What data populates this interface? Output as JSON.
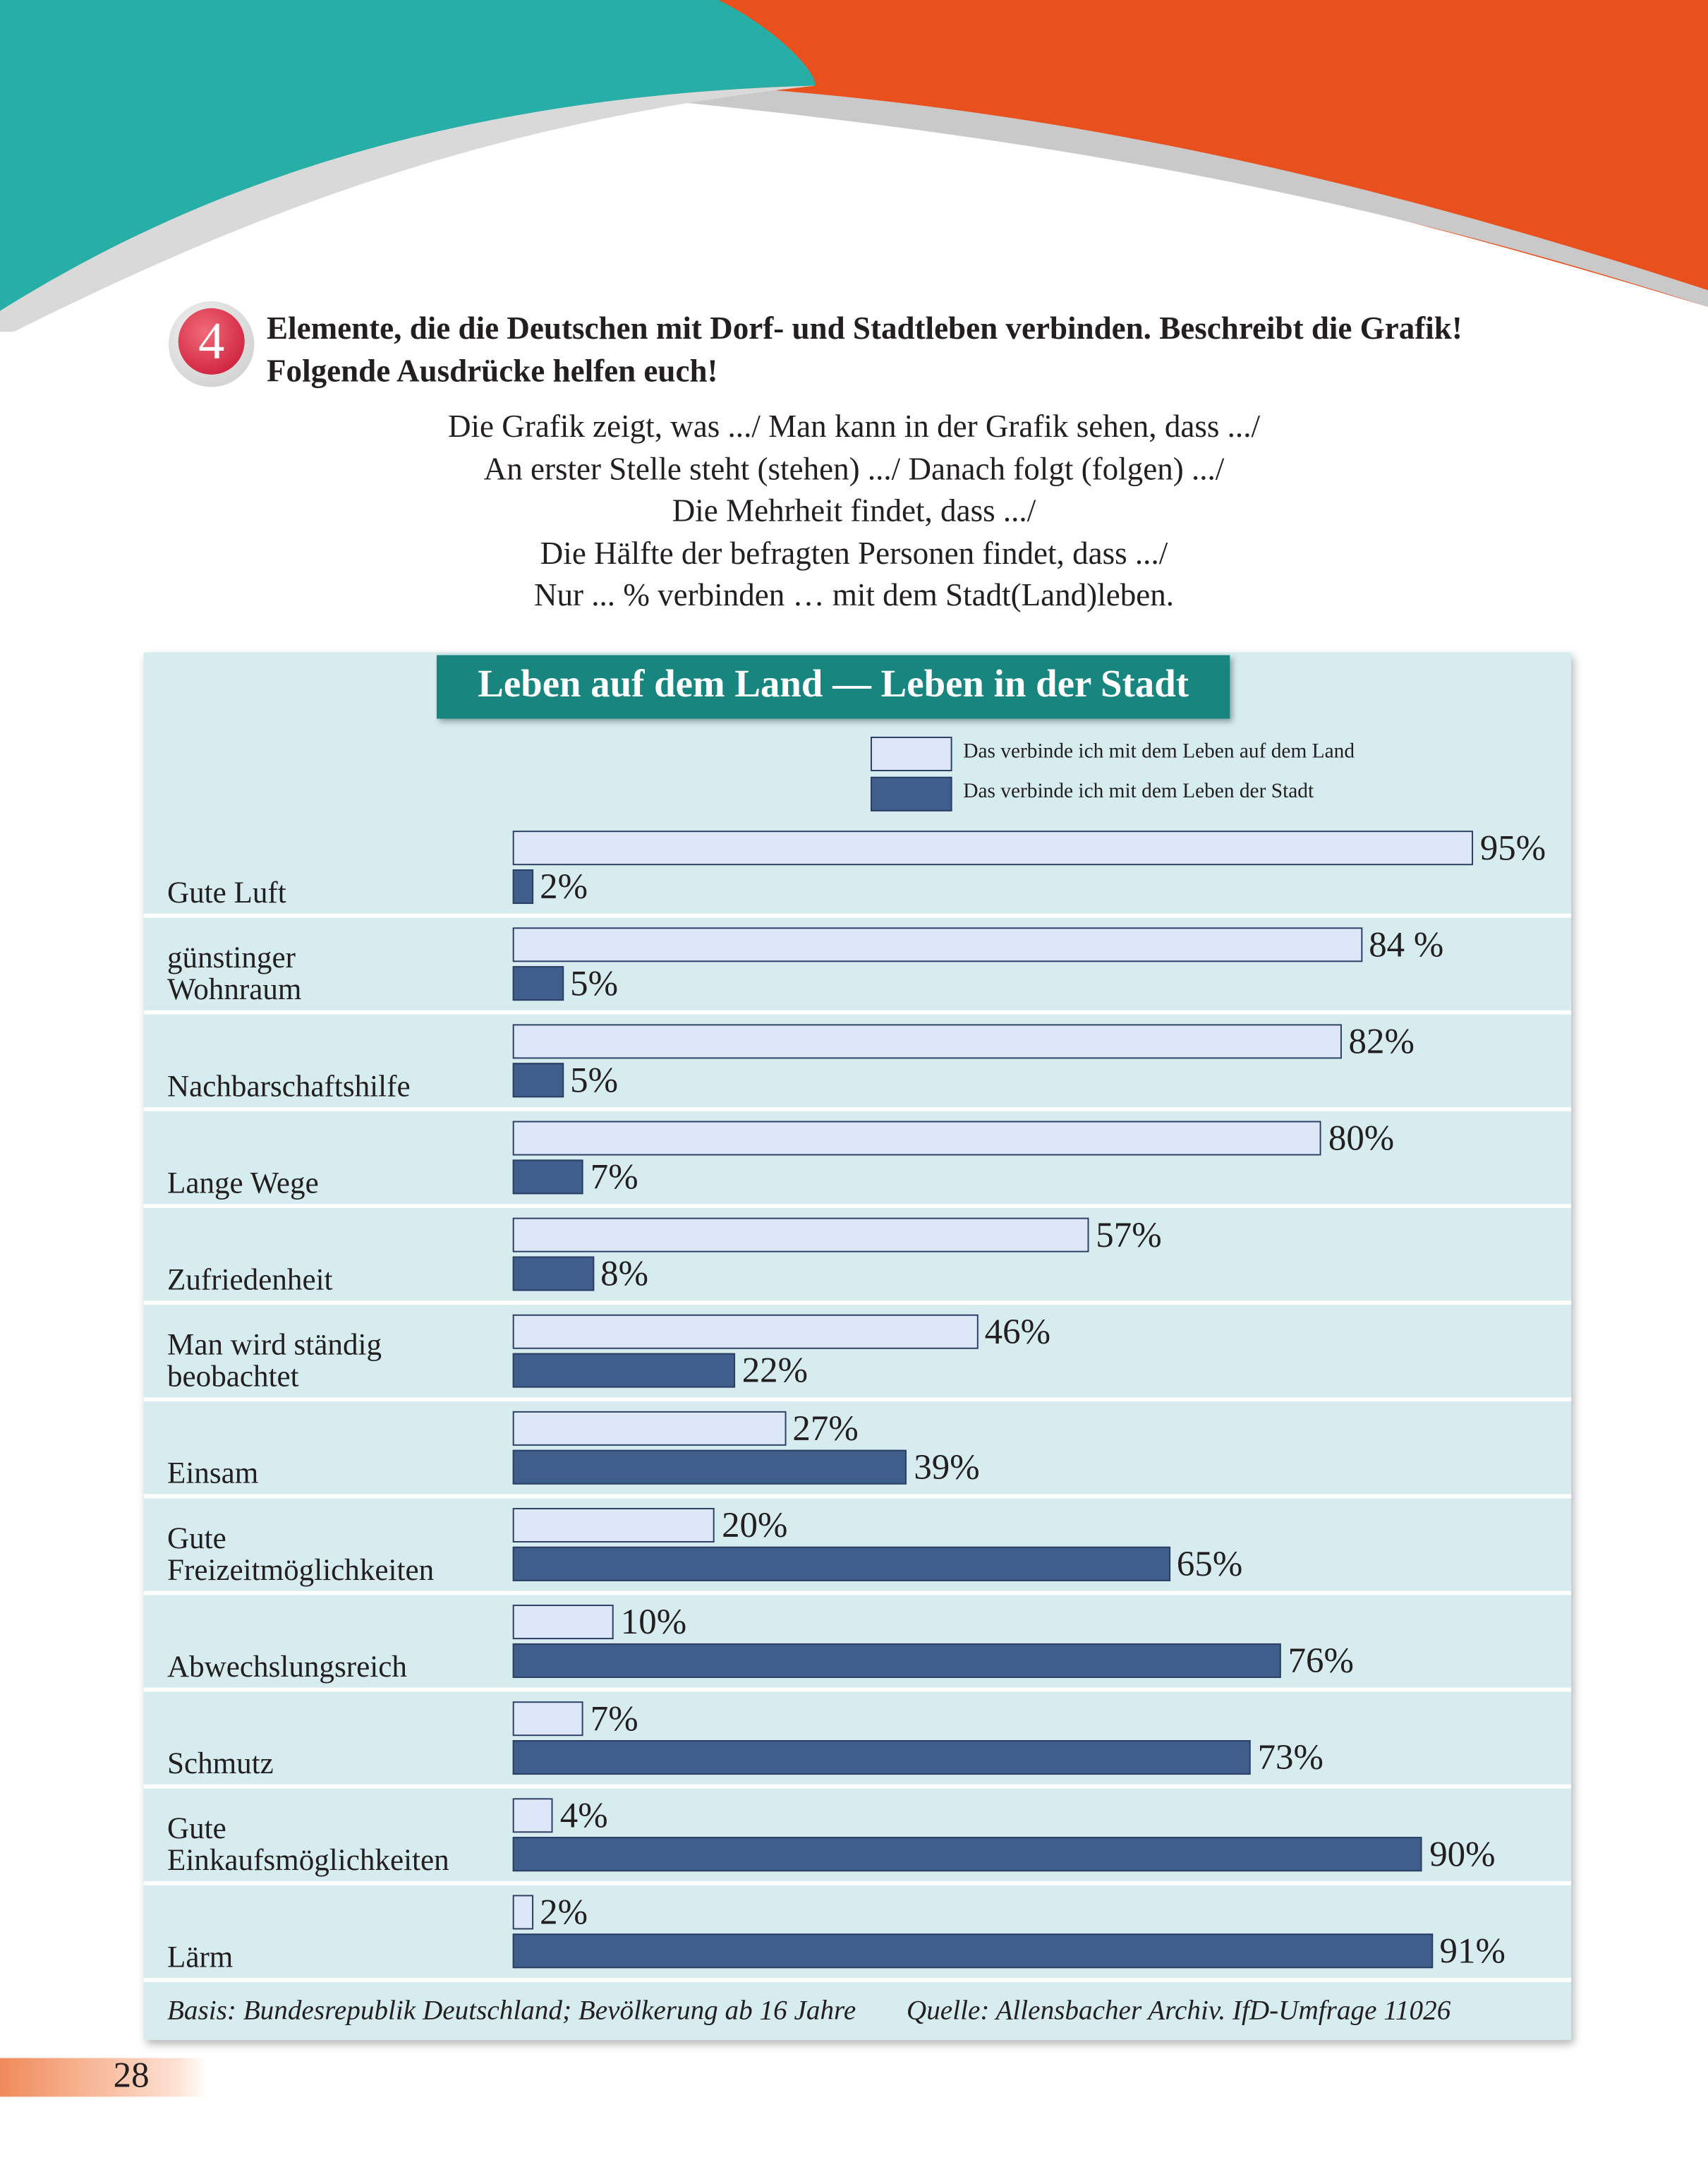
{
  "exercise": {
    "number": "4",
    "instruction": [
      "Elemente, die die Deutschen mit Dorf- und Stadtleben verbinden. Beschreibt die Grafik!",
      "Folgende Ausdrücke helfen euch!"
    ],
    "phrases": [
      "Die Grafik zeigt, was .../ Man kann in der Grafik sehen, dass .../",
      "An erster Stelle steht (stehen) .../ Danach folgt (folgen) .../",
      "Die Mehrheit findet, dass .../",
      "Die Hälfte der befragten Personen findet, dass .../",
      "Nur ... % verbinden … mit dem Stadt(Land)leben."
    ]
  },
  "page_number": "28",
  "chart_data": {
    "type": "bar",
    "orientation": "horizontal",
    "title": "Leben auf dem Land — Leben in der Stadt",
    "categories": [
      "Gute Luft",
      "günstinger\nWohnraum",
      "Nachbarschaftshilfe",
      "Lange Wege",
      "Zufriedenheit",
      "Man wird ständig\nbeobachtet",
      "Einsam",
      "Gute\nFreizeitmöglichkeiten",
      "Abwechslungsreich",
      "Schmutz",
      "Gute\nEinkaufsmöglichkeiten",
      "Lärm"
    ],
    "series": [
      {
        "name": "Das verbinde ich mit dem Leben auf dem Land",
        "color": "#dde7f7",
        "values": [
          95,
          84,
          82,
          80,
          57,
          46,
          27,
          20,
          10,
          7,
          4,
          2
        ],
        "value_labels": [
          "95%",
          "84 %",
          "82%",
          "80%",
          "57%",
          "46%",
          "27%",
          "20%",
          "10%",
          "7%",
          "4%",
          "2%"
        ]
      },
      {
        "name": "Das verbinde ich mit dem Leben der Stadt",
        "color": "#3f5e8c",
        "values": [
          2,
          5,
          5,
          7,
          8,
          22,
          39,
          65,
          76,
          73,
          90,
          91
        ],
        "value_labels": [
          "2%",
          "5%",
          "5%",
          "7%",
          "8%",
          "22%",
          "39%",
          "65%",
          "76%",
          "73%",
          "90%",
          "91%"
        ]
      }
    ],
    "notes": [
      "Basis: Bundesrepublik Deutschland; Bevölkerung ab 16 Jahre",
      "Quelle: Allensbacher Archiv. IfD-Umfrage 11026"
    ]
  }
}
